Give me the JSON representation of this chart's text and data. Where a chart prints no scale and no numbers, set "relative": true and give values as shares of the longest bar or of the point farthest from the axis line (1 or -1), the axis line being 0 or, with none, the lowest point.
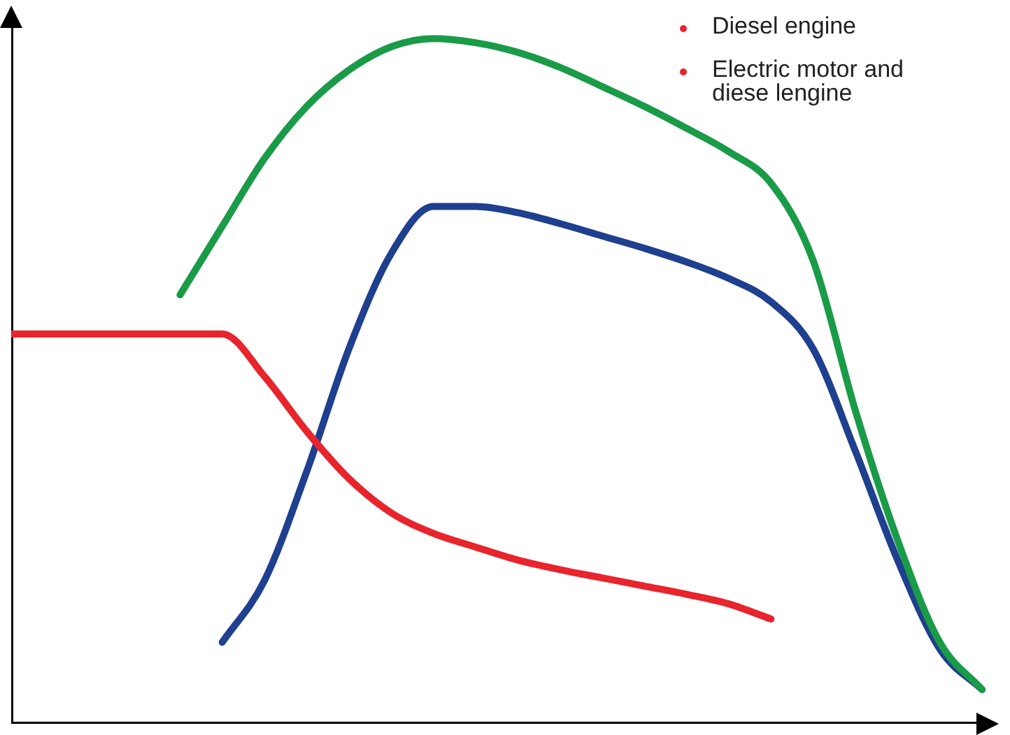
{
  "chart_data": {
    "type": "line",
    "relative": true,
    "categories": [
      null,
      null,
      null,
      null,
      null,
      null,
      null,
      null,
      null,
      null,
      null,
      null,
      null,
      null,
      null,
      null,
      null,
      null,
      null,
      null,
      null,
      null,
      null,
      null
    ],
    "series": [
      {
        "color": "#e8242c",
        "values": [
          0.569,
          0.569,
          0.569,
          0.569,
          0.569,
          0.569,
          0.507,
          0.427,
          0.358,
          0.308,
          0.278,
          0.258,
          0.239,
          0.225,
          0.213,
          0.201,
          0.189,
          0.175,
          0.153,
          null,
          null,
          null,
          null,
          null
        ]
      },
      {
        "color": "#1a9b48",
        "values": [
          null,
          null,
          null,
          null,
          0.626,
          0.726,
          0.825,
          0.901,
          0.954,
          0.988,
          1.0,
          0.994,
          0.98,
          0.958,
          0.93,
          0.901,
          0.869,
          0.835,
          0.789,
          0.676,
          0.457,
          0.268,
          0.119,
          0.05
        ]
      },
      {
        "color": "#1f3f8f",
        "values": [
          null,
          null,
          null,
          null,
          null,
          0.119,
          0.209,
          0.368,
          0.547,
          0.686,
          0.755,
          0.755,
          0.746,
          0.73,
          0.712,
          0.694,
          0.674,
          0.65,
          0.616,
          0.547,
          0.398,
          0.239,
          0.109,
          0.05
        ]
      }
    ],
    "annotations": [
      "Diesel engine",
      "Electric motor and diese lengine"
    ],
    "grid": false,
    "legend": false,
    "marker": "none",
    "line_style": "solid"
  }
}
